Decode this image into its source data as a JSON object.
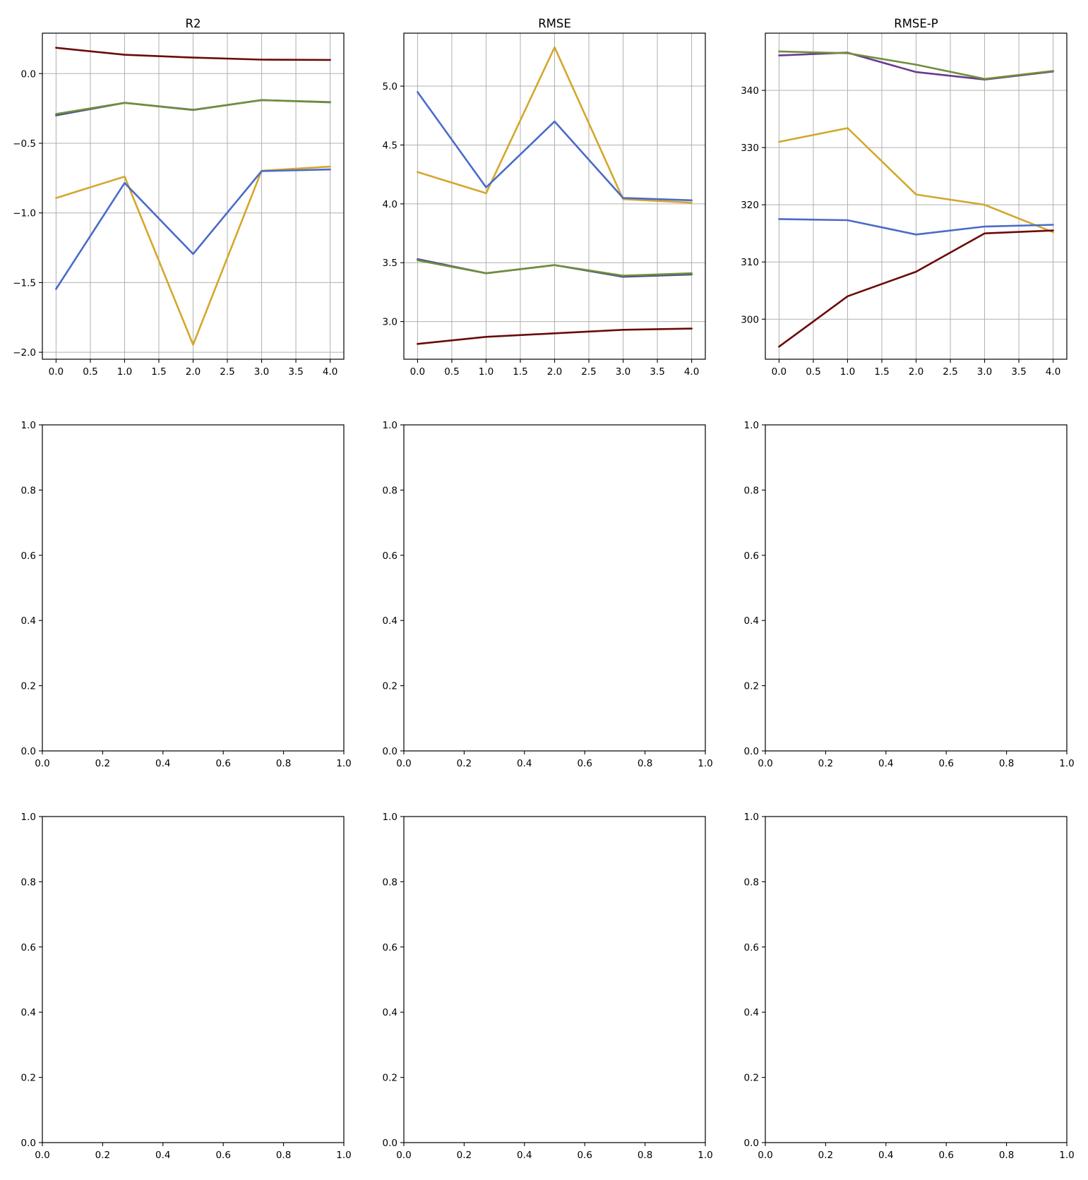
{
  "chart_data": [
    {
      "type": "line",
      "title": "R2",
      "grid": true,
      "xlim": [
        -0.2,
        4.2
      ],
      "ylim": [
        -2.05,
        0.29
      ],
      "xticks": [
        "0.0",
        "0.5",
        "1.0",
        "1.5",
        "2.0",
        "2.5",
        "3.0",
        "3.5",
        "4.0"
      ],
      "yticks": [
        "0.0",
        "−0.5",
        "−1.0",
        "−1.5",
        "−2.0"
      ],
      "x": [
        0,
        1,
        2,
        3,
        4
      ],
      "series": [
        {
          "color": "#6b0a0a",
          "values": [
            0.185,
            0.135,
            0.115,
            0.1,
            0.098
          ]
        },
        {
          "color": "#4a4f8f",
          "values": [
            -0.3,
            -0.21,
            -0.26,
            -0.19,
            -0.205
          ]
        },
        {
          "color": "#6f8f3a",
          "values": [
            -0.29,
            -0.21,
            -0.262,
            -0.19,
            -0.207
          ]
        },
        {
          "color": "#d4a72c",
          "values": [
            -0.893,
            -0.739,
            -1.946,
            -0.697,
            -0.668
          ]
        },
        {
          "color": "#4a6bc8",
          "values": [
            -1.546,
            -0.785,
            -1.295,
            -0.7,
            -0.688
          ]
        }
      ]
    },
    {
      "type": "line",
      "title": "RMSE",
      "grid": true,
      "xlim": [
        -0.2,
        4.2
      ],
      "ylim": [
        2.68,
        5.45
      ],
      "xticks": [
        "0.0",
        "0.5",
        "1.0",
        "1.5",
        "2.0",
        "2.5",
        "3.0",
        "3.5",
        "4.0"
      ],
      "yticks": [
        "3.0",
        "3.5",
        "4.0",
        "4.5",
        "5.0"
      ],
      "x": [
        0,
        1,
        2,
        3,
        4
      ],
      "series": [
        {
          "color": "#d4a72c",
          "values": [
            4.27,
            4.09,
            5.33,
            4.04,
            4.01
          ]
        },
        {
          "color": "#4a6bc8",
          "values": [
            4.95,
            4.14,
            4.7,
            4.05,
            4.03
          ]
        },
        {
          "color": "#4a4f8f",
          "values": [
            3.53,
            3.41,
            3.48,
            3.38,
            3.4
          ]
        },
        {
          "color": "#6f8f3a",
          "values": [
            3.52,
            3.41,
            3.48,
            3.39,
            3.41
          ]
        },
        {
          "color": "#6b0a0a",
          "values": [
            2.81,
            2.87,
            2.9,
            2.93,
            2.94
          ]
        }
      ]
    },
    {
      "type": "line",
      "title": "RMSE-P",
      "grid": true,
      "xlim": [
        -0.2,
        4.2
      ],
      "ylim": [
        293,
        350
      ],
      "xticks": [
        "0.0",
        "0.5",
        "1.0",
        "1.5",
        "2.0",
        "2.5",
        "3.0",
        "3.5",
        "4.0"
      ],
      "yticks": [
        "300",
        "310",
        "320",
        "330",
        "340"
      ],
      "x": [
        0,
        1,
        2,
        3,
        4
      ],
      "series": [
        {
          "color": "#6b3a8f",
          "values": [
            346.1,
            346.6,
            343.2,
            341.9,
            343.3
          ]
        },
        {
          "color": "#6f8f3a",
          "values": [
            346.8,
            346.5,
            344.5,
            342.0,
            343.4
          ]
        },
        {
          "color": "#d4a72c",
          "values": [
            331.0,
            333.4,
            321.8,
            320.0,
            315.2
          ]
        },
        {
          "color": "#4a6bc8",
          "values": [
            317.5,
            317.3,
            314.8,
            316.2,
            316.5
          ]
        },
        {
          "color": "#6b0a0a",
          "values": [
            295.2,
            304.0,
            308.3,
            315.0,
            315.5
          ]
        }
      ]
    },
    {
      "type": "line",
      "title": "",
      "xlim": [
        0,
        1
      ],
      "ylim": [
        0,
        1
      ],
      "xticks": [
        "0.0",
        "0.2",
        "0.4",
        "0.6",
        "0.8",
        "1.0"
      ],
      "yticks": [
        "0.0",
        "0.2",
        "0.4",
        "0.6",
        "0.8",
        "1.0"
      ],
      "series": []
    },
    {
      "type": "line",
      "title": "",
      "xlim": [
        0,
        1
      ],
      "ylim": [
        0,
        1
      ],
      "xticks": [
        "0.0",
        "0.2",
        "0.4",
        "0.6",
        "0.8",
        "1.0"
      ],
      "yticks": [
        "0.0",
        "0.2",
        "0.4",
        "0.6",
        "0.8",
        "1.0"
      ],
      "series": []
    },
    {
      "type": "line",
      "title": "",
      "xlim": [
        0,
        1
      ],
      "ylim": [
        0,
        1
      ],
      "xticks": [
        "0.0",
        "0.2",
        "0.4",
        "0.6",
        "0.8",
        "1.0"
      ],
      "yticks": [
        "0.0",
        "0.2",
        "0.4",
        "0.6",
        "0.8",
        "1.0"
      ],
      "series": []
    },
    {
      "type": "line",
      "title": "",
      "xlim": [
        0,
        1
      ],
      "ylim": [
        0,
        1
      ],
      "xticks": [
        "0.0",
        "0.2",
        "0.4",
        "0.6",
        "0.8",
        "1.0"
      ],
      "yticks": [
        "0.0",
        "0.2",
        "0.4",
        "0.6",
        "0.8",
        "1.0"
      ],
      "series": []
    },
    {
      "type": "line",
      "title": "",
      "xlim": [
        0,
        1
      ],
      "ylim": [
        0,
        1
      ],
      "xticks": [
        "0.0",
        "0.2",
        "0.4",
        "0.6",
        "0.8",
        "1.0"
      ],
      "yticks": [
        "0.0",
        "0.2",
        "0.4",
        "0.6",
        "0.8",
        "1.0"
      ],
      "series": []
    },
    {
      "type": "line",
      "title": "",
      "xlim": [
        0,
        1
      ],
      "ylim": [
        0,
        1
      ],
      "xticks": [
        "0.0",
        "0.2",
        "0.4",
        "0.6",
        "0.8",
        "1.0"
      ],
      "yticks": [
        "0.0",
        "0.2",
        "0.4",
        "0.6",
        "0.8",
        "1.0"
      ],
      "series": []
    }
  ]
}
